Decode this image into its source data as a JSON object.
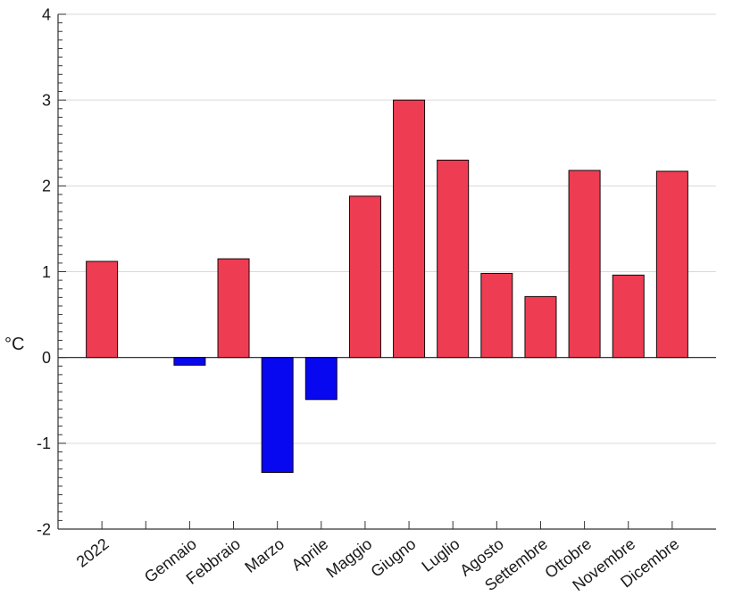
{
  "chart_data": {
    "type": "bar",
    "title": "",
    "xlabel": "",
    "ylabel": "°C",
    "categories": [
      "2022",
      "",
      "Gennaio",
      "Febbraio",
      "Marzo",
      "Aprile",
      "Maggio",
      "Giugno",
      "Luglio",
      "Agosto",
      "Settembre",
      "Ottobre",
      "Novembre",
      "Dicembre"
    ],
    "values": [
      1.12,
      null,
      -0.09,
      1.15,
      -1.34,
      -0.49,
      1.88,
      3.0,
      2.3,
      0.98,
      0.71,
      2.18,
      0.96,
      2.17
    ],
    "ylim": [
      -2,
      4
    ],
    "y_major_ticks": [
      -2,
      -1,
      0,
      1,
      2,
      3,
      4
    ],
    "y_tick_labels": [
      "-2",
      "-1",
      "0",
      "1",
      "2",
      "3",
      "4"
    ],
    "y_minor_tick_step": 0.1,
    "grid": "horizontal-major",
    "legend_position": "none",
    "x_label_rotation_deg": 38,
    "colors": {
      "positive_bar": "#ee3d52",
      "negative_bar": "#0707f0",
      "bar_edge": "#14060a",
      "grid_line": "#d9d9d9",
      "axis_line": "#333333",
      "zero_line": "#1a1a1a",
      "text": "#1a1a1a",
      "background": "#ffffff"
    }
  }
}
